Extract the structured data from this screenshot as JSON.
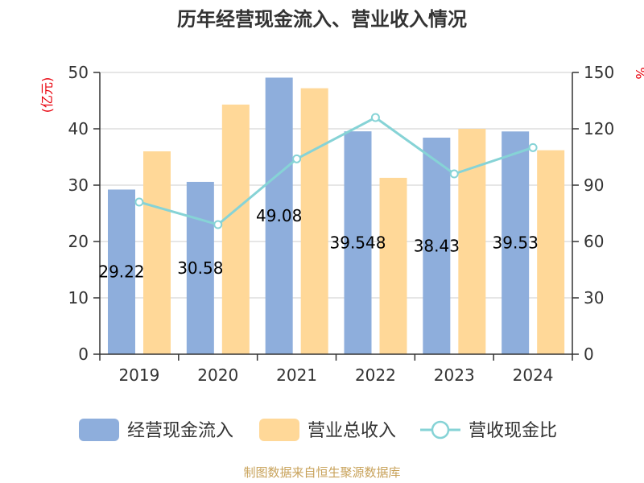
{
  "colors": {
    "cash": "#8eaedc",
    "revenue": "#ffd898",
    "ratio": "#86d3d6",
    "unit": "#e8000b",
    "source": "#c8a25a"
  },
  "chart_data": {
    "type": "bar",
    "title": "历年经营现金流入、营业收入情况",
    "categories": [
      "2019",
      "2020",
      "2021",
      "2022",
      "2023",
      "2024"
    ],
    "series": [
      {
        "name": "经营现金流入",
        "type": "bar",
        "axis": "left",
        "values": [
          29.22,
          30.58,
          49.08,
          39.55,
          38.43,
          39.53
        ]
      },
      {
        "name": "营业总收入",
        "type": "bar",
        "axis": "left",
        "values": [
          36.0,
          44.3,
          47.2,
          31.3,
          40.0,
          36.2
        ]
      },
      {
        "name": "营收现金比",
        "type": "line",
        "axis": "right",
        "values": [
          81,
          69,
          104,
          126,
          96,
          110
        ]
      }
    ],
    "data_labels": [
      "29.22",
      "30.58",
      "49.08",
      "39.548",
      "38.43",
      "39.53"
    ],
    "y_left": {
      "label": "(亿元)",
      "min": 0,
      "max": 50,
      "ticks": [
        0,
        10,
        20,
        30,
        40,
        50
      ]
    },
    "y_right": {
      "label": "%",
      "min": 0,
      "max": 150,
      "ticks": [
        0,
        30,
        60,
        90,
        120,
        150
      ]
    },
    "grid": true,
    "legend": "bottom",
    "legend_items": [
      "经营现金流入",
      "营业总收入",
      "营收现金比"
    ]
  },
  "source": "制图数据来自恒生聚源数据库"
}
